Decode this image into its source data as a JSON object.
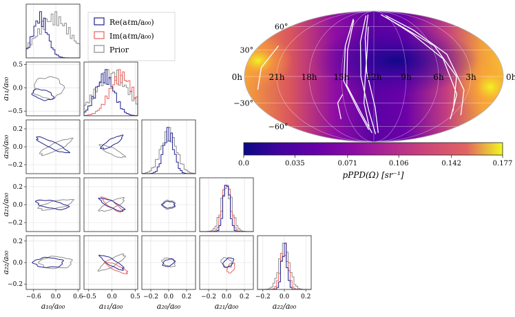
{
  "chart_data": [
    {
      "type": "corner",
      "parameters": [
        "a_10/a_00",
        "a_11/a_00",
        "a_20/a_00",
        "a_21/a_00",
        "a_22/a_00"
      ],
      "axis_labels": [
        "a₁₀/a₀₀",
        "a₁₁/a₀₀",
        "a₂₀/a₀₀",
        "a₂₁/a₀₀",
        "a₂₂/a₀₀"
      ],
      "ranges": [
        [
          -0.8,
          0.65
        ],
        [
          -0.6,
          0.55
        ],
        [
          -0.3,
          0.3
        ],
        [
          -0.3,
          0.3
        ],
        [
          -0.25,
          0.25
        ]
      ],
      "ticks": [
        {
          "values": [
            -0.6,
            0.0,
            0.6
          ],
          "labels": [
            "−0.6",
            "0.0",
            "0.6"
          ]
        },
        {
          "values": [
            -0.5,
            0.0,
            0.5
          ],
          "labels": [
            "−0.5",
            "0.0",
            "0.5"
          ]
        },
        {
          "values": [
            -0.2,
            0.0,
            0.2
          ],
          "labels": [
            "−0.2",
            "0.0",
            "0.2"
          ]
        },
        {
          "values": [
            -0.2,
            0.0,
            0.2
          ],
          "labels": [
            "−0.2",
            "0.0",
            "0.2"
          ]
        },
        {
          "values": [
            -0.2,
            0.0,
            0.2
          ],
          "labels": [
            "−0.2",
            "0.0",
            "0.2"
          ]
        }
      ],
      "series": [
        {
          "name": "Re(a_ℓm/a_00)",
          "label": "Re(aℓm/a₀₀)",
          "color": "#1f1f8f"
        },
        {
          "name": "Im(a_ℓm/a_00)",
          "label": "Im(aℓm/a₀₀)",
          "color": "#e8605a"
        },
        {
          "name": "Prior",
          "label": "Prior",
          "color": "#8c8c8c"
        }
      ],
      "marginals": [
        {
          "param": 0,
          "Re": {
            "mean": -0.42,
            "sd": 0.2
          },
          "Prior": {
            "mean": -0.05,
            "sd": 0.45
          }
        },
        {
          "param": 1,
          "Re": {
            "mean": -0.15,
            "sd": 0.2
          },
          "Im": {
            "mean": 0.2,
            "sd": 0.25
          },
          "Prior": {
            "mean": 0.0,
            "sd": 0.35
          }
        },
        {
          "param": 2,
          "Re": {
            "mean": 0.0,
            "sd": 0.06
          },
          "Prior": {
            "mean": 0.0,
            "sd": 0.09
          }
        },
        {
          "param": 3,
          "Re": {
            "mean": 0.0,
            "sd": 0.035
          },
          "Im": {
            "mean": 0.0,
            "sd": 0.045
          },
          "Prior": {
            "mean": 0.0,
            "sd": 0.06
          }
        },
        {
          "param": 4,
          "Re": {
            "mean": 0.0,
            "sd": 0.025
          },
          "Im": {
            "mean": 0.0,
            "sd": 0.035
          },
          "Prior": {
            "mean": 0.0,
            "sd": 0.05
          }
        }
      ],
      "contours": [
        {
          "row": 1,
          "col": 0,
          "Re": {
            "cx": -0.35,
            "cy": -0.15,
            "rx": 0.4,
            "ry": 0.18,
            "rot": -15
          },
          "Prior": {
            "cx": -0.2,
            "cy": 0.0,
            "rx": 0.55,
            "ry": 0.4,
            "rot": 0
          }
        },
        {
          "row": 2,
          "col": 0,
          "Re": {
            "cx": -0.1,
            "cy": 0.02,
            "rx": 0.65,
            "ry": 0.12,
            "rot": -25
          },
          "Prior": {
            "cx": 0.0,
            "cy": 0.0,
            "rx": 0.65,
            "ry": 0.14,
            "rot": 25
          }
        },
        {
          "row": 2,
          "col": 1,
          "Re": {
            "cx": 0.0,
            "cy": 0.05,
            "rx": 0.45,
            "ry": 0.12,
            "rot": 30
          },
          "Prior": {
            "cx": 0.0,
            "cy": -0.05,
            "rx": 0.5,
            "ry": 0.12,
            "rot": -25
          }
        },
        {
          "row": 3,
          "col": 0,
          "Re": {
            "cx": -0.1,
            "cy": 0.0,
            "rx": 0.6,
            "ry": 0.14,
            "rot": -10
          },
          "Prior": {
            "cx": 0.0,
            "cy": 0.0,
            "rx": 0.65,
            "ry": 0.14,
            "rot": 12
          }
        },
        {
          "row": 3,
          "col": 1,
          "Re": {
            "cx": 0.0,
            "cy": 0.0,
            "rx": 0.5,
            "ry": 0.12,
            "rot": -25
          },
          "Im": {
            "cx": 0.0,
            "cy": 0.0,
            "rx": 0.45,
            "ry": 0.11,
            "rot": -35
          },
          "Prior": {
            "cx": 0.0,
            "cy": 0.0,
            "rx": 0.5,
            "ry": 0.14,
            "rot": 25
          }
        },
        {
          "row": 3,
          "col": 2,
          "Re": {
            "cx": 0.0,
            "cy": 0.0,
            "rx": 0.22,
            "ry": 0.12,
            "rot": 0
          },
          "Prior": {
            "cx": 0.0,
            "cy": 0.0,
            "rx": 0.25,
            "ry": 0.16,
            "rot": 0
          }
        },
        {
          "row": 4,
          "col": 0,
          "Re": {
            "cx": -0.2,
            "cy": 0.0,
            "rx": 0.55,
            "ry": 0.18,
            "rot": 0
          },
          "Prior": {
            "cx": 0.0,
            "cy": 0.0,
            "rx": 0.6,
            "ry": 0.22,
            "rot": 0
          }
        },
        {
          "row": 4,
          "col": 1,
          "Re": {
            "cx": 0.0,
            "cy": 0.0,
            "rx": 0.5,
            "ry": 0.12,
            "rot": -30
          },
          "Im": {
            "cx": 0.1,
            "cy": -0.05,
            "rx": 0.45,
            "ry": 0.1,
            "rot": -25
          },
          "Prior": {
            "cx": 0.0,
            "cy": 0.0,
            "rx": 0.55,
            "ry": 0.14,
            "rot": 30
          }
        },
        {
          "row": 4,
          "col": 2,
          "Re": {
            "cx": 0.0,
            "cy": 0.0,
            "rx": 0.23,
            "ry": 0.12,
            "rot": 20
          },
          "Prior": {
            "cx": 0.0,
            "cy": 0.0,
            "rx": 0.25,
            "ry": 0.15,
            "rot": -20
          }
        },
        {
          "row": 4,
          "col": 3,
          "Re": {
            "cx": 0.02,
            "cy": 0.0,
            "rx": 0.22,
            "ry": 0.14,
            "rot": 40
          },
          "Im": {
            "cx": 0.05,
            "cy": -0.05,
            "rx": 0.2,
            "ry": 0.12,
            "rot": 60
          },
          "Prior": {
            "cx": 0.0,
            "cy": 0.0,
            "rx": 0.22,
            "ry": 0.15,
            "rot": -35
          }
        }
      ]
    },
    {
      "type": "heatmap",
      "projection": "mollweide",
      "ra_tick_labels": [
        "0h",
        "21h",
        "18h",
        "15h",
        "12h",
        "9h",
        "6h",
        "3h",
        "0h"
      ],
      "dec_tick_labels": [
        "60°",
        "30°",
        "−30°",
        "−60°"
      ],
      "dec_tick_values": [
        60,
        30,
        -30,
        -60
      ],
      "dipole_max": {
        "ra_hours": 1.5,
        "dec_deg": -10
      },
      "dipole_min": {
        "ra_hours": 13.5,
        "dec_deg": 10
      },
      "colorbar": {
        "label": "pPPD(Ω) [sr⁻¹]",
        "min": 0.0,
        "max": 0.177,
        "ticks": [
          "0.0",
          "0.035",
          "0.071",
          "0.106",
          "0.142",
          "0.177"
        ],
        "tick_values": [
          0.0,
          0.035,
          0.071,
          0.106,
          0.142,
          0.177
        ],
        "colormap": "plasma"
      }
    }
  ],
  "colors": {
    "re": "#1f1f8f",
    "im": "#e8605a",
    "prior": "#8c8c8c",
    "grid": "#dcdcdc"
  }
}
